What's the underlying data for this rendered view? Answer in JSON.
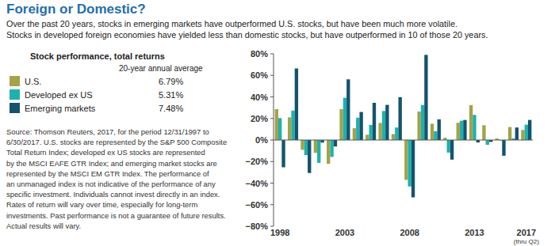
{
  "chart_data": {
    "type": "bar",
    "title": "Foreign or Domestic?",
    "subtitle": [
      "Over the past 20 years, stocks in emerging markets have outperformed U.S. stocks, but have been much more volatile.",
      "Stocks in developed foreign economies have yielded less than domestic stocks, but have outperformed in 10 of those 20 years."
    ],
    "legend_title": "Stock performance, total returns",
    "legend_subtitle": "20-year annual average",
    "source": [
      "Source: Thomson Reuters, 2017, for the period 12/31/1997 to",
      "6/30/2017. U.S. stocks are represented by the S&P 500 Composite",
      "Total Return Index; developed ex US stocks are represented",
      "by the MSCI EAFE GTR Index; and emerging market stocks are",
      "represented by the MSCI EM GTR Index. The performance of",
      "an unmanaged index is not indicative of the performance of any",
      "specific investment. Individuals cannot invest directly in an index.",
      "Rates of return will vary over time, especially for long-term",
      "investments. Past performance is not a guarantee of future results.",
      "Actual results will vary."
    ],
    "categories": [
      "1998",
      null,
      null,
      null,
      null,
      "2003",
      null,
      null,
      null,
      null,
      "2008",
      null,
      null,
      null,
      null,
      "2013",
      null,
      null,
      null,
      "2017"
    ],
    "annotation": "(thru Q2)",
    "series": [
      {
        "name": "U.S.",
        "color": "#a3a347",
        "average": "6.79%",
        "values": [
          28.6,
          21.0,
          -9.1,
          -11.9,
          -22.1,
          28.7,
          10.9,
          4.9,
          15.8,
          5.5,
          -37.0,
          26.5,
          15.1,
          2.1,
          16.0,
          32.4,
          13.7,
          1.4,
          12.0,
          9.3
        ]
      },
      {
        "name": "Developed ex US",
        "color": "#1cb2ae",
        "average": "5.31%",
        "values": [
          20.3,
          27.3,
          -14.0,
          -21.2,
          -15.7,
          39.2,
          20.7,
          14.0,
          26.9,
          11.6,
          -43.1,
          32.5,
          8.2,
          -11.7,
          17.9,
          23.3,
          -4.5,
          -0.4,
          1.5,
          14.2
        ]
      },
      {
        "name": "Emerging markets",
        "color": "#15536d",
        "average": "7.48%",
        "values": [
          -25.3,
          66.4,
          -30.6,
          -2.4,
          -6.0,
          56.3,
          26.0,
          34.5,
          32.6,
          39.8,
          -53.2,
          79.0,
          19.2,
          -18.2,
          18.6,
          -2.3,
          -1.8,
          -14.6,
          11.6,
          18.6
        ]
      }
    ],
    "ylim": [
      -80,
      80
    ],
    "yticks": [
      {
        "value": -80,
        "label": "−80%"
      },
      {
        "value": -60,
        "label": "−60%"
      },
      {
        "value": -40,
        "label": "−40%"
      },
      {
        "value": -20,
        "label": "−20%"
      },
      {
        "value": 0,
        "label": "0%"
      },
      {
        "value": 20,
        "label": "20%"
      },
      {
        "value": 40,
        "label": "40%"
      },
      {
        "value": 60,
        "label": "60%"
      },
      {
        "value": 80,
        "label": "80%"
      }
    ],
    "grid": false
  }
}
